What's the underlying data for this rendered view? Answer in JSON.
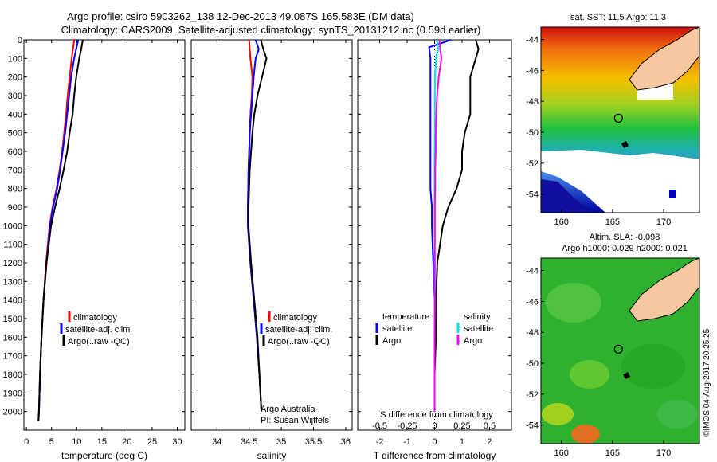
{
  "title": {
    "line1": "Argo profile: csiro 5903262_138 12-Dec-2013 49.087S 165.583E (DM data)",
    "line2": "Climatology: CARS2009. Satellite-adjusted climatology: synTS_20131212.nc (0.59d earlier)"
  },
  "colors": {
    "climatology": "#ff0000",
    "satellite": "#0000ff",
    "argo": "#000000",
    "sal_satellite": "#00e5e5",
    "sal_argo": "#ff00ff",
    "land": "#f5c8a0"
  },
  "credit": "©IMOS 04-Aug-2017 20:25:25",
  "legend": {
    "climatology": "climatology",
    "satellite": "satellite-adj. clim.",
    "argo": "Argo(..raw -QC)",
    "diff_temperature": "temperature",
    "diff_salinity": "salinity",
    "diff_satellite": "satellite",
    "diff_argo": "Argo"
  },
  "annotation": {
    "line1": "Argo Australia",
    "line2": "PI: Susan Wijffels"
  },
  "sst_map": {
    "title": "sat. SST: 11.5 Argo: 11.3"
  },
  "sla_map": {
    "title_line1": "Altim. SLA: -0.098",
    "title_line2": "Argo h1000: 0.029 h2000: 0.021"
  },
  "map_axes": {
    "yticks": [
      -44,
      -46,
      -48,
      -50,
      -52,
      -54
    ],
    "xticks": [
      160,
      165,
      170
    ],
    "ylim": [
      -55.2,
      -43.2
    ],
    "xlim": [
      158,
      173.5
    ],
    "float": {
      "lon": 165.58,
      "lat": -49.09
    }
  },
  "chart_data": [
    {
      "type": "line",
      "xlabel": "temperature (deg C)",
      "ylabel": "",
      "xlim": [
        -0.5,
        31.5
      ],
      "ylim": [
        2100,
        0
      ],
      "xticks": [
        0,
        5,
        10,
        15,
        20,
        25,
        30
      ],
      "yticks": [
        0,
        100,
        200,
        300,
        400,
        500,
        600,
        700,
        800,
        900,
        1000,
        1100,
        1200,
        1300,
        1400,
        1500,
        1600,
        1700,
        1800,
        1900,
        2000
      ],
      "series": [
        {
          "name": "climatology",
          "color": "#ff0000",
          "depth": [
            0,
            100,
            200,
            300,
            400,
            500,
            600,
            700,
            800,
            900,
            1000,
            1200,
            1400,
            1600,
            1800,
            2000,
            2050
          ],
          "values": [
            9.5,
            9.0,
            8.6,
            8.2,
            7.9,
            7.5,
            7.1,
            6.6,
            6.0,
            5.2,
            4.6,
            3.9,
            3.4,
            3.0,
            2.7,
            2.5,
            2.4
          ]
        },
        {
          "name": "satellite-adj. clim.",
          "color": "#0000ff",
          "depth": [
            0,
            100,
            200,
            300,
            400,
            500,
            600,
            700,
            800,
            900,
            1000,
            1200,
            1400,
            1600,
            1800,
            2000,
            2050
          ],
          "values": [
            10.3,
            9.5,
            8.9,
            8.5,
            8.1,
            7.7,
            7.2,
            6.7,
            6.1,
            5.3,
            4.7,
            4.0,
            3.4,
            3.0,
            2.7,
            2.5,
            2.4
          ]
        },
        {
          "name": "Argo(..raw -QC)",
          "color": "#000000",
          "depth": [
            0,
            50,
            100,
            200,
            300,
            400,
            500,
            600,
            700,
            800,
            900,
            1000,
            1200,
            1400,
            1600,
            1800,
            2000,
            2050
          ],
          "values": [
            11.2,
            10.9,
            10.5,
            9.9,
            9.5,
            9.2,
            8.6,
            8.1,
            7.4,
            6.6,
            5.7,
            4.9,
            4.0,
            3.4,
            3.0,
            2.7,
            2.5,
            2.4
          ]
        }
      ]
    },
    {
      "type": "line",
      "xlabel": "salinity",
      "xlim": [
        33.6,
        36.1
      ],
      "ylim": [
        2100,
        0
      ],
      "xticks": [
        34,
        34.5,
        35,
        35.5,
        36
      ],
      "series": [
        {
          "name": "climatology",
          "color": "#ff0000",
          "depth": [
            0,
            100,
            200,
            300,
            400,
            500,
            700,
            900,
            1000,
            1200,
            1400,
            1600,
            1800,
            2000
          ],
          "values": [
            34.5,
            34.52,
            34.55,
            34.54,
            34.52,
            34.51,
            34.49,
            34.48,
            34.48,
            34.52,
            34.57,
            34.62,
            34.66,
            34.69
          ]
        },
        {
          "name": "satellite-adj. clim.",
          "color": "#0000ff",
          "depth": [
            0,
            50,
            100,
            200,
            300,
            400,
            500,
            700,
            900,
            1000,
            1200,
            1400,
            1600,
            1800,
            2000
          ],
          "values": [
            34.6,
            34.65,
            34.6,
            34.57,
            34.55,
            34.53,
            34.51,
            34.49,
            34.48,
            34.48,
            34.52,
            34.57,
            34.62,
            34.66,
            34.69
          ]
        },
        {
          "name": "Argo(..raw -QC)",
          "color": "#000000",
          "depth": [
            0,
            50,
            100,
            200,
            300,
            400,
            500,
            600,
            700,
            800,
            900,
            1000,
            1200,
            1400,
            1600,
            1800,
            2000
          ],
          "values": [
            34.68,
            34.72,
            34.77,
            34.7,
            34.63,
            34.58,
            34.55,
            34.53,
            34.51,
            34.5,
            34.49,
            34.49,
            34.53,
            34.58,
            34.63,
            34.66,
            34.69
          ]
        }
      ]
    },
    {
      "type": "line",
      "xlabel": "T difference from climatology",
      "xlabel_top": "S difference from climatology",
      "xlim": [
        -2.8,
        2.8
      ],
      "ylim": [
        2100,
        0
      ],
      "xticks": [
        -2,
        -1,
        0,
        1,
        2
      ],
      "xticks_top": [
        -0.5,
        -0.25,
        0,
        0.25,
        0.5
      ],
      "series": [
        {
          "name": "temperature satellite",
          "color": "#0000ff",
          "depth": [
            0,
            40,
            100,
            200,
            300,
            400,
            500,
            600,
            700,
            800,
            900,
            1000,
            1200,
            1400,
            1600,
            1800,
            2000
          ],
          "values": [
            0.6,
            -0.2,
            -0.15,
            -0.15,
            -0.15,
            -0.15,
            -0.15,
            -0.15,
            -0.15,
            -0.15,
            -0.1,
            -0.1,
            -0.05,
            0,
            0,
            0,
            0
          ]
        },
        {
          "name": "temperature Argo",
          "color": "#000000",
          "depth": [
            0,
            50,
            100,
            200,
            300,
            400,
            500,
            600,
            700,
            800,
            900,
            1000,
            1200,
            1400,
            1600,
            1800,
            2000
          ],
          "values": [
            1.5,
            1.6,
            1.5,
            1.3,
            1.3,
            1.3,
            1.1,
            1.0,
            1.0,
            0.8,
            0.5,
            0.3,
            0.1,
            0.05,
            0.05,
            0,
            0
          ]
        },
        {
          "name": "salinity satellite",
          "color": "#00e5e5",
          "depth": [
            0,
            50,
            100,
            200,
            300,
            400,
            500,
            600,
            700,
            800,
            900,
            1000,
            1200,
            1400,
            1600,
            1800,
            2000
          ],
          "values": [
            0.1,
            0.13,
            0.05,
            0.02,
            0.01,
            0.01,
            0.01,
            0,
            0,
            0,
            0,
            0,
            0,
            0,
            0,
            0,
            0
          ]
        },
        {
          "name": "salinity Argo",
          "color": "#ff00ff",
          "depth": [
            0,
            50,
            100,
            200,
            300,
            400,
            500,
            600,
            700,
            800,
            900,
            1000,
            1200,
            1400,
            1600,
            1800,
            2000
          ],
          "values": [
            0.18,
            0.2,
            0.25,
            0.15,
            0.09,
            0.06,
            0.04,
            0.04,
            0.02,
            0.02,
            0.01,
            0.01,
            0.01,
            0.01,
            0,
            0,
            0
          ]
        }
      ]
    }
  ]
}
